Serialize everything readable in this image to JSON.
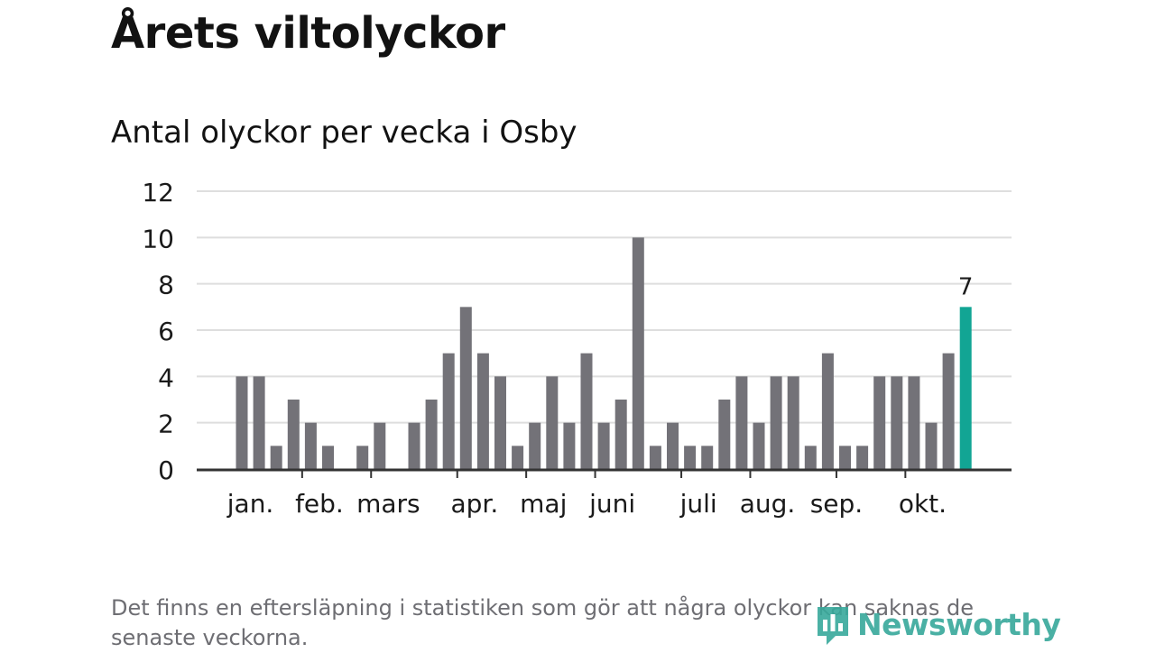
{
  "title": "Årets viltolyckor",
  "subtitle": "Antal olyckor per vecka i Osby",
  "footnote": "Det finns en eftersläpning i statistiken som gör att några olyckor kan saknas de senaste veckorna.",
  "brand": {
    "name": "Newsworthy",
    "color": "#37a89b"
  },
  "colors": {
    "bar": "#737278",
    "highlight": "#12a594",
    "grid": "#dedede",
    "axis": "#333333",
    "text": "#1a1a1a"
  },
  "chart_data": {
    "type": "bar",
    "title": "Antal olyckor per vecka i Osby",
    "xlabel": "",
    "ylabel": "",
    "ylim": [
      0,
      12
    ],
    "yticks": [
      0,
      2,
      4,
      6,
      8,
      10,
      12
    ],
    "grid": true,
    "weeks": [
      1,
      2,
      3,
      4,
      5,
      6,
      7,
      8,
      9,
      10,
      11,
      12,
      13,
      14,
      15,
      16,
      17,
      18,
      19,
      20,
      21,
      22,
      23,
      24,
      25,
      26,
      27,
      28,
      29,
      30,
      31,
      32,
      33,
      34,
      35,
      36,
      37,
      38,
      39,
      40,
      41,
      42,
      43
    ],
    "values": [
      4,
      4,
      1,
      3,
      2,
      1,
      0,
      1,
      2,
      0,
      2,
      3,
      5,
      7,
      5,
      4,
      1,
      2,
      4,
      2,
      5,
      2,
      3,
      10,
      1,
      2,
      1,
      1,
      3,
      4,
      2,
      4,
      4,
      1,
      5,
      1,
      1,
      4,
      4,
      4,
      2,
      5,
      7
    ],
    "highlight_last": true,
    "last_value_label": "7",
    "month_labels": [
      {
        "label": "jan.",
        "week": 1.5
      },
      {
        "label": "feb.",
        "week": 5.5
      },
      {
        "label": "mars",
        "week": 9.5
      },
      {
        "label": "apr.",
        "week": 14.5
      },
      {
        "label": "maj",
        "week": 18.5
      },
      {
        "label": "juni",
        "week": 22.5
      },
      {
        "label": "juli",
        "week": 27.5
      },
      {
        "label": "aug.",
        "week": 31.5
      },
      {
        "label": "sep.",
        "week": 35.5
      },
      {
        "label": "okt.",
        "week": 40.5
      }
    ],
    "month_tick_weeks": [
      5,
      9,
      14,
      18,
      22,
      27,
      31,
      36,
      40
    ]
  }
}
